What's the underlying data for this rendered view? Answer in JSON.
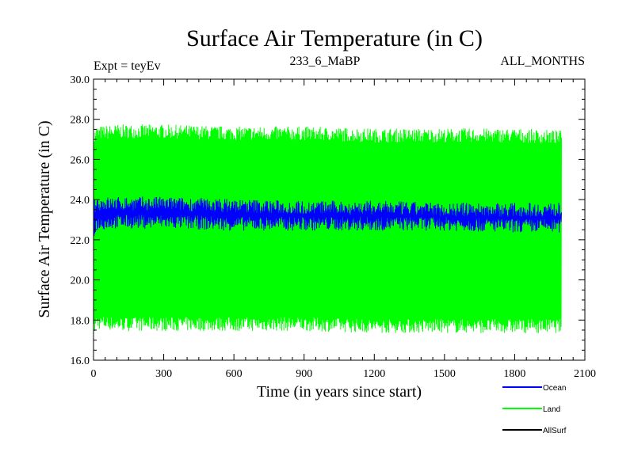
{
  "chart_data": {
    "type": "line",
    "title": "Surface Air Temperature (in C)",
    "expt_label": "Expt = teyEv",
    "subtitle": "233_6_MaBP",
    "months_label": "ALL_MONTHS",
    "xlabel": "Time (in years since start)",
    "ylabel": "Surface Air Temperature (in C)",
    "xlim": [
      0,
      2100
    ],
    "ylim": [
      16,
      30
    ],
    "x_ticks": [
      0,
      300,
      600,
      900,
      1200,
      1500,
      1800,
      2100
    ],
    "x_tick_labels": [
      "0",
      "300",
      "600",
      "900",
      "1200",
      "1500",
      "1800",
      "2100"
    ],
    "y_ticks": [
      16,
      18,
      20,
      22,
      24,
      26,
      28,
      30
    ],
    "y_tick_labels": [
      "16.0",
      "18.0",
      "20.0",
      "22.0",
      "24.0",
      "26.0",
      "28.0",
      "30.0"
    ],
    "legend_position": "bottom-right",
    "x_range": [
      1,
      2000
    ],
    "series": [
      {
        "name": "Land",
        "color": "#00ff00",
        "style": "dense-oscillation",
        "envelope_x": [
          0,
          10,
          100,
          300,
          600,
          900,
          1200,
          1500,
          1800,
          2000
        ],
        "upper": [
          26.9,
          27.3,
          27.4,
          27.4,
          27.3,
          27.3,
          27.2,
          27.2,
          27.2,
          27.1
        ],
        "lower": [
          17.4,
          17.9,
          17.8,
          17.8,
          17.8,
          17.8,
          17.7,
          17.7,
          17.7,
          17.7
        ],
        "max_spike": 28.0,
        "min_spike": 16.9
      },
      {
        "name": "Ocean",
        "color": "#0000ff",
        "style": "dense-oscillation",
        "envelope_x": [
          0,
          10,
          100,
          300,
          600,
          900,
          1200,
          1500,
          1800,
          2000
        ],
        "upper": [
          23.6,
          23.8,
          23.8,
          23.8,
          23.7,
          23.6,
          23.6,
          23.5,
          23.5,
          23.5
        ],
        "lower": [
          22.2,
          22.8,
          22.9,
          22.9,
          22.8,
          22.8,
          22.8,
          22.8,
          22.7,
          22.7
        ]
      },
      {
        "name": "AllSurf",
        "color": "#000000",
        "style": "line",
        "x": [],
        "y": []
      }
    ]
  }
}
